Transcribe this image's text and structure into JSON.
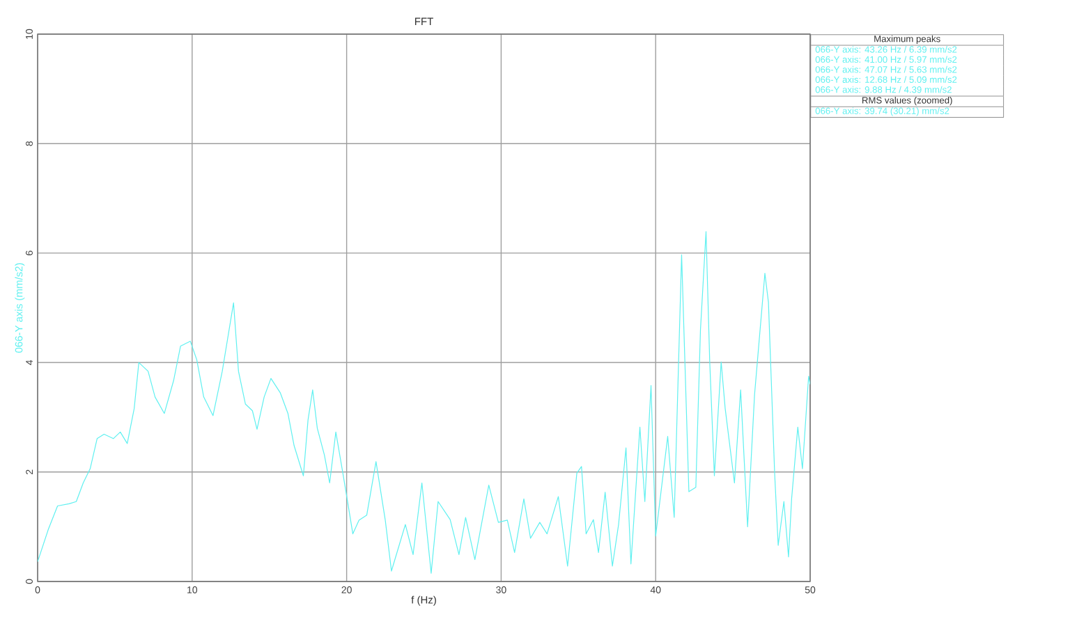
{
  "chart_data": {
    "type": "line",
    "title": "FFT",
    "xlabel": "f (Hz)",
    "ylabel": "066-Y axis (mm/s2)",
    "x": [
      0,
      0.69,
      1.29,
      2.04,
      2.5,
      2.95,
      3.4,
      3.85,
      4.3,
      4.9,
      5.35,
      5.8,
      6.25,
      6.55,
      7.15,
      7.6,
      8.2,
      8.8,
      9.25,
      9.88,
      10.3,
      10.75,
      11.35,
      11.95,
      12.68,
      13.0,
      13.45,
      13.9,
      14.2,
      14.66,
      15.1,
      15.7,
      16.2,
      16.6,
      17.2,
      17.5,
      17.8,
      18.1,
      18.56,
      18.9,
      19.3,
      19.76,
      20.06,
      20.4,
      20.8,
      21.3,
      21.9,
      22.5,
      22.9,
      23.8,
      24.3,
      24.87,
      25.47,
      25.92,
      26.7,
      27.27,
      27.7,
      28.3,
      29.2,
      29.82,
      30.4,
      30.87,
      31.47,
      31.9,
      32.5,
      32.97,
      33.7,
      34.3,
      34.9,
      35.2,
      35.5,
      35.97,
      36.3,
      36.73,
      37.2,
      37.6,
      38.08,
      38.4,
      38.98,
      39.3,
      39.7,
      40.0,
      40.78,
      41.2,
      41.68,
      42.15,
      42.6,
      42.9,
      43.26,
      43.5,
      43.8,
      44.24,
      44.5,
      45.1,
      45.5,
      45.95,
      46.4,
      47.07,
      47.3,
      47.7,
      47.93,
      48.3,
      48.6,
      48.8,
      49.2,
      49.5,
      49.9,
      50
    ],
    "series": [
      {
        "color": "#5ff0f0",
        "values": [
          0.36,
          0.95,
          1.38,
          1.42,
          1.46,
          1.8,
          2.06,
          2.61,
          2.69,
          2.61,
          2.73,
          2.52,
          3.16,
          4.0,
          3.84,
          3.37,
          3.07,
          3.67,
          4.3,
          4.39,
          4.05,
          3.37,
          3.03,
          3.84,
          5.09,
          3.84,
          3.24,
          3.12,
          2.78,
          3.37,
          3.71,
          3.45,
          3.07,
          2.48,
          1.93,
          2.95,
          3.5,
          2.8,
          2.31,
          1.8,
          2.73,
          1.97,
          1.46,
          0.87,
          1.12,
          1.21,
          2.19,
          1.12,
          0.19,
          1.04,
          0.49,
          1.8,
          0.15,
          1.46,
          1.13,
          0.49,
          1.17,
          0.4,
          1.76,
          1.08,
          1.12,
          0.53,
          1.51,
          0.79,
          1.08,
          0.87,
          1.55,
          0.28,
          1.98,
          2.1,
          0.87,
          1.13,
          0.53,
          1.63,
          0.28,
          1.04,
          2.44,
          0.32,
          2.82,
          1.46,
          3.58,
          0.83,
          2.65,
          1.17,
          5.97,
          1.64,
          1.72,
          4.6,
          6.39,
          4.01,
          1.93,
          4.01,
          3.16,
          1.8,
          3.5,
          1.0,
          3.41,
          5.63,
          5.1,
          1.98,
          0.66,
          1.46,
          0.45,
          1.51,
          2.82,
          2.06,
          3.75,
          3.6
        ]
      }
    ],
    "xlim": [
      0,
      50
    ],
    "xticks": [
      0,
      10,
      20,
      30,
      40,
      50
    ],
    "ylim": [
      0,
      10
    ],
    "yticks": [
      0,
      2,
      4,
      6,
      8,
      10
    ],
    "grid": true,
    "marker": "none",
    "line_style": "solid",
    "annotations": [
      "Maximum peaks",
      "066-Y axis: 43.26 Hz / 6.39 mm/s2",
      "066-Y axis: 41.00 Hz / 5.97 mm/s2",
      "066-Y axis: 47.07 Hz / 5.63 mm/s2",
      "066-Y axis: 12.68 Hz / 5.09 mm/s2",
      "066-Y axis: 9.88 Hz / 4.39 mm/s2",
      "RMS values (zoomed)",
      "066-Y axis: 39.74 (30.21) mm/s2"
    ]
  }
}
